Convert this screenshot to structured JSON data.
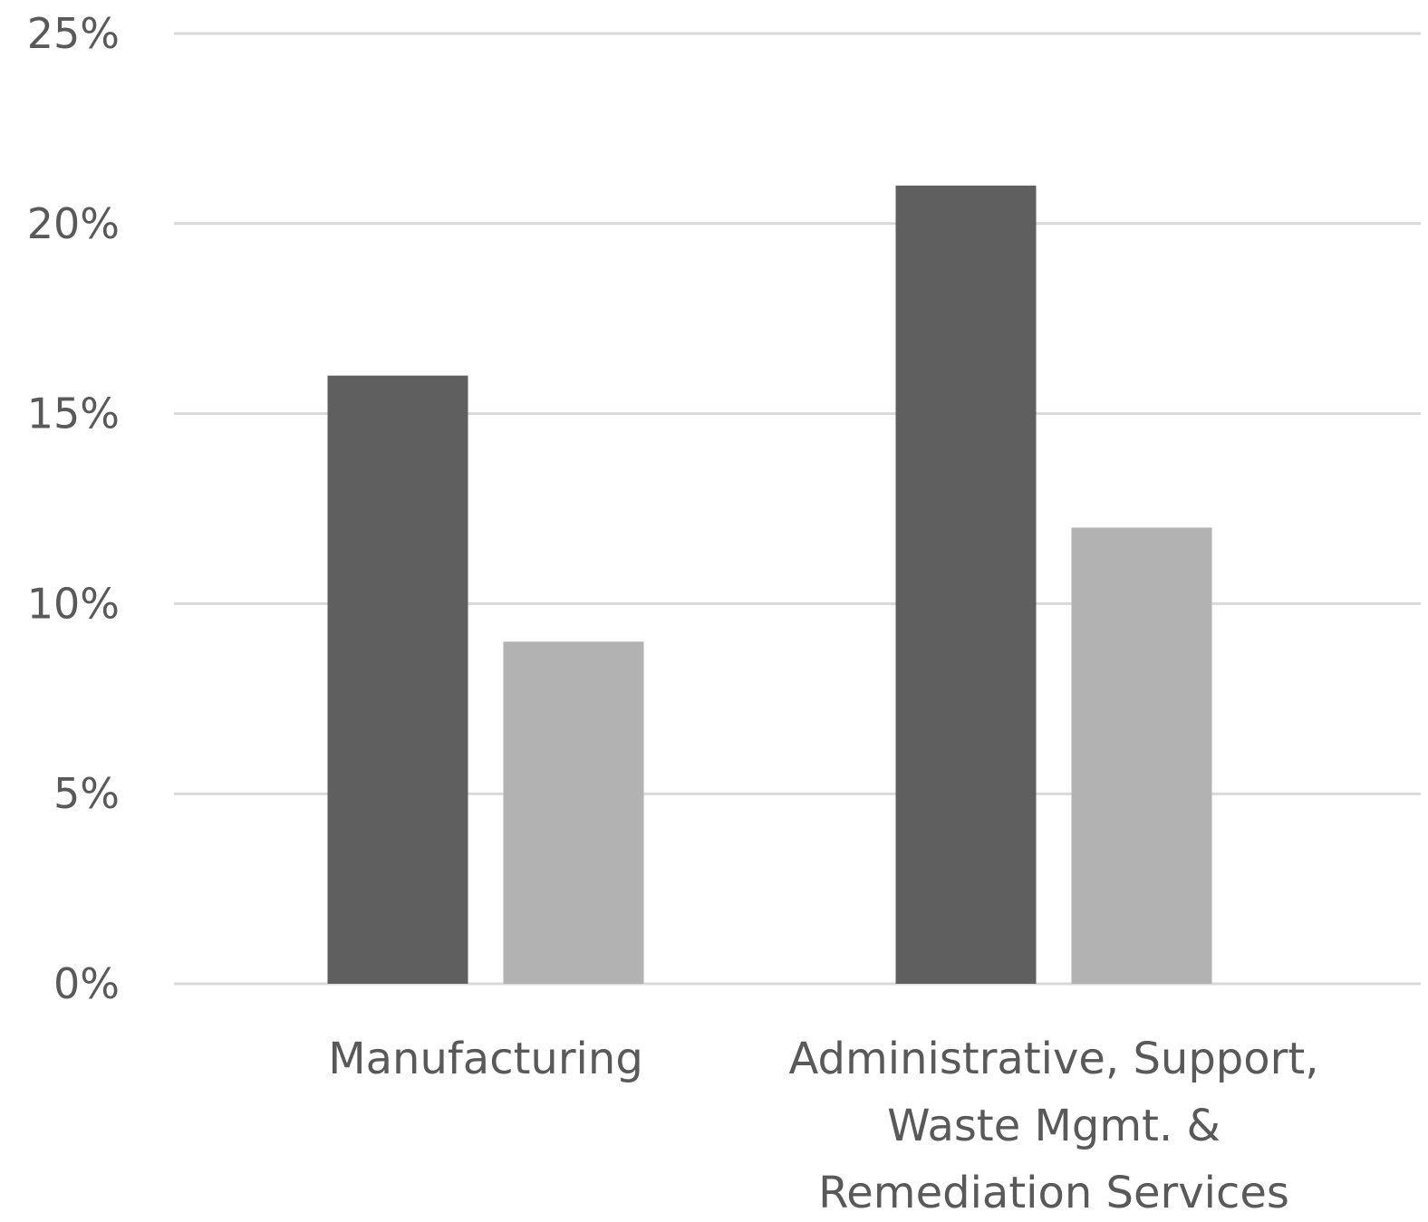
{
  "chart_data": {
    "type": "bar",
    "categories": [
      [
        "Manufacturing"
      ],
      [
        "Administrative, Support,",
        "Waste Mgmt. &",
        "Remediation Services"
      ]
    ],
    "series": [
      {
        "values": [
          16,
          21
        ],
        "color": "#5f5f5f"
      },
      {
        "values": [
          9,
          12
        ],
        "color": "#b2b2b2"
      }
    ],
    "yticks": [
      {
        "value": 0,
        "label": "0%"
      },
      {
        "value": 5,
        "label": "5%"
      },
      {
        "value": 10,
        "label": "10%"
      },
      {
        "value": 15,
        "label": "15%"
      },
      {
        "value": 20,
        "label": "20%"
      },
      {
        "value": 25,
        "label": "25%"
      }
    ],
    "ylim": [
      0,
      25
    ],
    "grid": true,
    "gridline_color": "#d9d9d9",
    "text_color": "#595959",
    "title": "",
    "xlabel": "",
    "ylabel": ""
  }
}
